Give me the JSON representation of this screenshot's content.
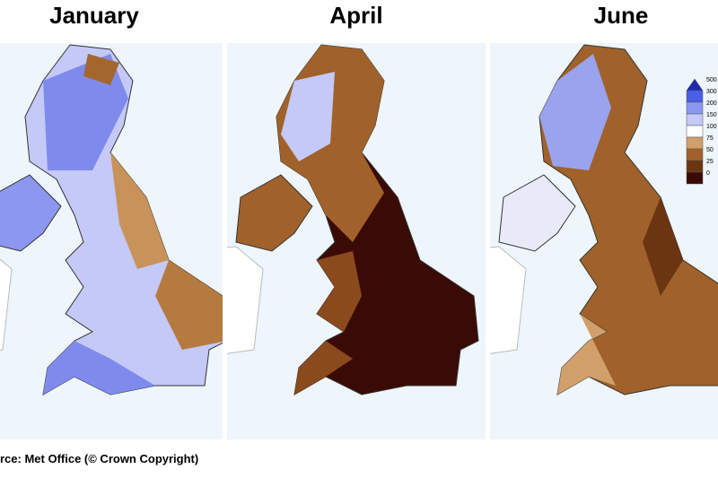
{
  "panels": [
    {
      "title": "January"
    },
    {
      "title": "April"
    },
    {
      "title": "June"
    }
  ],
  "legend": {
    "labels": [
      500,
      300,
      200,
      150,
      100,
      75,
      50,
      25,
      0
    ],
    "colors": [
      "#1a2ab0",
      "#4a5ee8",
      "#8c97f0",
      "#c4c9f7",
      "#ffffff",
      "#d1a06a",
      "#a0622a",
      "#6b3512",
      "#3a0a05"
    ]
  },
  "source": "rce: Met Office (© Crown Copyright)"
}
